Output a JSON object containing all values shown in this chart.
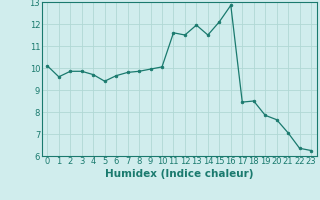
{
  "x": [
    0,
    1,
    2,
    3,
    4,
    5,
    6,
    7,
    8,
    9,
    10,
    11,
    12,
    13,
    14,
    15,
    16,
    17,
    18,
    19,
    20,
    21,
    22,
    23
  ],
  "y": [
    10.1,
    9.6,
    9.85,
    9.85,
    9.7,
    9.4,
    9.65,
    9.8,
    9.85,
    9.95,
    10.05,
    11.6,
    11.5,
    11.95,
    11.5,
    12.1,
    12.85,
    8.45,
    8.5,
    7.85,
    7.65,
    7.05,
    6.35,
    6.25
  ],
  "line_color": "#1a7a6e",
  "marker": "o",
  "marker_size": 2,
  "bg_color": "#d0eded",
  "grid_color": "#b0d8d5",
  "xlabel": "Humidex (Indice chaleur)",
  "xlim": [
    -0.5,
    23.5
  ],
  "ylim": [
    6,
    13
  ],
  "yticks": [
    6,
    7,
    8,
    9,
    10,
    11,
    12,
    13
  ],
  "xticks": [
    0,
    1,
    2,
    3,
    4,
    5,
    6,
    7,
    8,
    9,
    10,
    11,
    12,
    13,
    14,
    15,
    16,
    17,
    18,
    19,
    20,
    21,
    22,
    23
  ],
  "label_fontsize": 7.5,
  "tick_fontsize": 6.0
}
